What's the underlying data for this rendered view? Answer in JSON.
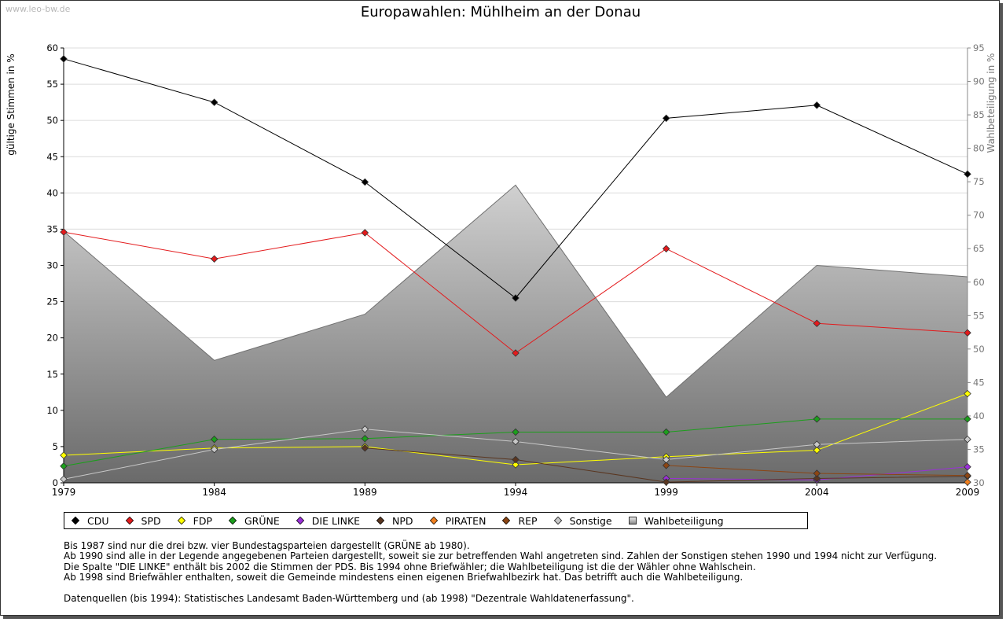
{
  "watermark": "www.leo-bw.de",
  "chart_data": {
    "type": "line",
    "title": "Europawahlen: Mühlheim an der Donau",
    "ylabel": "gültige Stimmen in %",
    "y2label": "Wahlbeteiligung in %",
    "x": [
      1979,
      1984,
      1989,
      1994,
      1999,
      2004,
      2009
    ],
    "ylim": [
      0,
      60
    ],
    "y_ticks": [
      0,
      5,
      10,
      15,
      20,
      25,
      30,
      35,
      40,
      45,
      50,
      55,
      60
    ],
    "y2lim": [
      30,
      95
    ],
    "y2_ticks": [
      30,
      35,
      40,
      45,
      50,
      55,
      60,
      65,
      70,
      75,
      80,
      85,
      90,
      95
    ],
    "grid": true,
    "legend_position": "bottom",
    "area": {
      "name": "Wahlbeteiligung",
      "axis": "right",
      "values": [
        67.6,
        48.3,
        55.2,
        74.5,
        42.8,
        62.5,
        60.8
      ]
    },
    "series": [
      {
        "name": "CDU",
        "color": "#000000",
        "values": [
          58.5,
          52.5,
          41.5,
          25.5,
          50.3,
          52.1,
          42.6
        ]
      },
      {
        "name": "SPD",
        "color": "#e31a1c",
        "values": [
          34.6,
          30.9,
          34.5,
          17.9,
          32.3,
          22.0,
          20.7
        ]
      },
      {
        "name": "FDP",
        "color": "#ffff00",
        "values": [
          3.8,
          4.8,
          5.0,
          2.5,
          3.6,
          4.5,
          12.3
        ]
      },
      {
        "name": "GRÜNE",
        "color": "#1c9e1c",
        "values": [
          2.3,
          6.0,
          6.1,
          7.0,
          7.0,
          8.8,
          8.8
        ]
      },
      {
        "name": "DIE LINKE",
        "color": "#9b30d9",
        "values": [
          null,
          null,
          null,
          null,
          0.6,
          0.4,
          2.2
        ]
      },
      {
        "name": "NPD",
        "color": "#5a3620",
        "values": [
          null,
          null,
          4.8,
          3.2,
          0.1,
          0.6,
          0.9
        ]
      },
      {
        "name": "PIRATEN",
        "color": "#f07f1e",
        "values": [
          null,
          null,
          null,
          null,
          null,
          null,
          0.1
        ]
      },
      {
        "name": "REP",
        "color": "#8b4513",
        "values": [
          null,
          null,
          null,
          null,
          2.4,
          1.3,
          1.0
        ]
      },
      {
        "name": "Sonstige",
        "color": "#c8c8c8",
        "values": [
          0.5,
          4.6,
          7.4,
          5.7,
          3.2,
          5.3,
          6.0
        ]
      }
    ]
  },
  "legend": [
    {
      "label": "CDU",
      "color": "#000000",
      "shape": "dot"
    },
    {
      "label": "SPD",
      "color": "#e31a1c",
      "shape": "dot"
    },
    {
      "label": "FDP",
      "color": "#ffff00",
      "shape": "dot"
    },
    {
      "label": "GRÜNE",
      "color": "#1c9e1c",
      "shape": "dot"
    },
    {
      "label": "DIE LINKE",
      "color": "#9b30d9",
      "shape": "dot"
    },
    {
      "label": "NPD",
      "color": "#5a3620",
      "shape": "dot"
    },
    {
      "label": "PIRATEN",
      "color": "#f07f1e",
      "shape": "dot"
    },
    {
      "label": "REP",
      "color": "#8b4513",
      "shape": "dot"
    },
    {
      "label": "Sonstige",
      "color": "#c8c8c8",
      "shape": "dot"
    },
    {
      "label": "Wahlbeteiligung",
      "color": "#bbbbbb",
      "shape": "box"
    }
  ],
  "notes": [
    "Bis 1987 sind nur die drei bzw. vier Bundestagsparteien dargestellt (GRÜNE ab 1980).",
    "Ab 1990 sind alle in der Legende angegebenen Parteien dargestellt, soweit sie zur betreffenden Wahl angetreten sind. Zahlen der Sonstigen stehen 1990 und 1994 nicht zur Verfügung.",
    "Die Spalte \"DIE LINKE\" enthält bis 2002 die Stimmen der PDS. Bis 1994 ohne Briefwähler; die Wahlbeteiligung ist die der Wähler ohne Wahlschein.",
    "Ab 1998 sind Briefwähler enthalten, soweit die Gemeinde mindestens einen eigenen Briefwahlbezirk hat. Das betrifft auch die Wahlbeteiligung."
  ],
  "source": "Datenquellen (bis 1994): Statistisches Landesamt Baden-Württemberg und (ab 1998) \"Dezentrale Wahldatenerfassung\"."
}
